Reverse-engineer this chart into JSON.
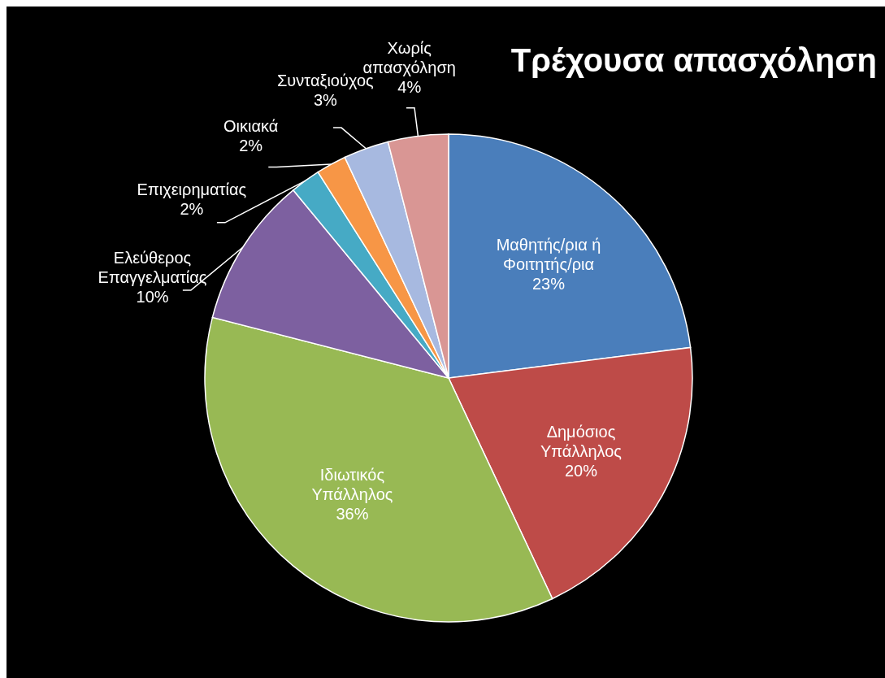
{
  "chart_data": {
    "type": "pie",
    "title": "Τρέχουσα απασχόληση",
    "categories": [
      "Μαθητής/ρια ή Φοιτητής/ρια",
      "Δημόσιος Υπάλληλος",
      "Ιδιωτικός Υπάλληλος",
      "Ελεύθερος Επαγγελματίας",
      "Επιχειρηματίας",
      "Οικιακά",
      "Συνταξιούχος",
      "Χωρίς απασχόληση"
    ],
    "values": [
      23,
      20,
      36,
      10,
      2,
      2,
      3,
      4
    ],
    "value_labels": [
      "23%",
      "20%",
      "36%",
      "10%",
      "2%",
      "2%",
      "3%",
      "4%"
    ],
    "colors": [
      "#4a7ebb",
      "#be4b48",
      "#98b954",
      "#7d60a0",
      "#46aac5",
      "#f79646",
      "#a7b9e0",
      "#d99694"
    ]
  }
}
